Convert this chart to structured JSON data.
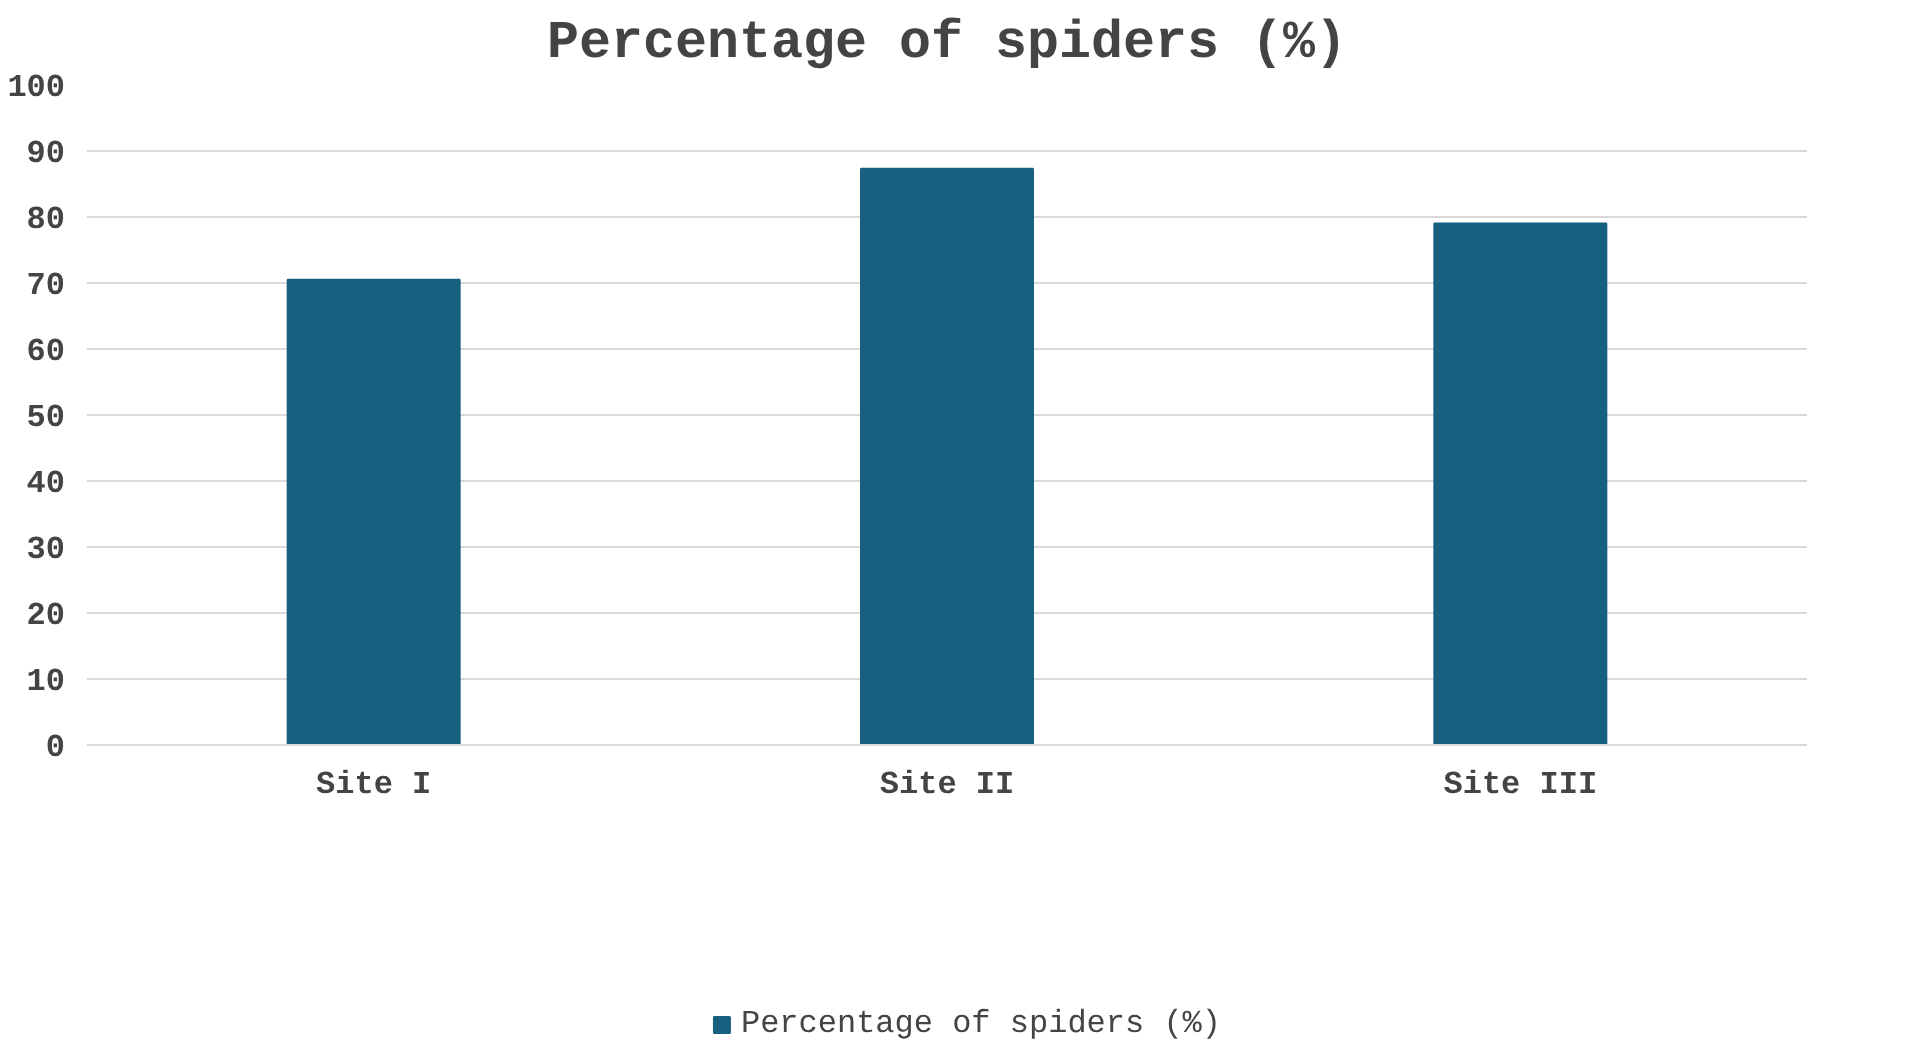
{
  "chart_data": {
    "type": "bar",
    "title": "Percentage of spiders (%)",
    "categories": [
      "Site I",
      "Site II",
      "Site III"
    ],
    "series": [
      {
        "name": "Percentage of spiders (%)",
        "color": "#17607f",
        "values": [
          70.5,
          87.3,
          79.0
        ]
      }
    ],
    "ylim": [
      0,
      100
    ],
    "yticks": [
      0,
      10,
      20,
      30,
      40,
      50,
      60,
      70,
      80,
      90,
      100
    ],
    "grid": "y",
    "legend": "bottom"
  }
}
